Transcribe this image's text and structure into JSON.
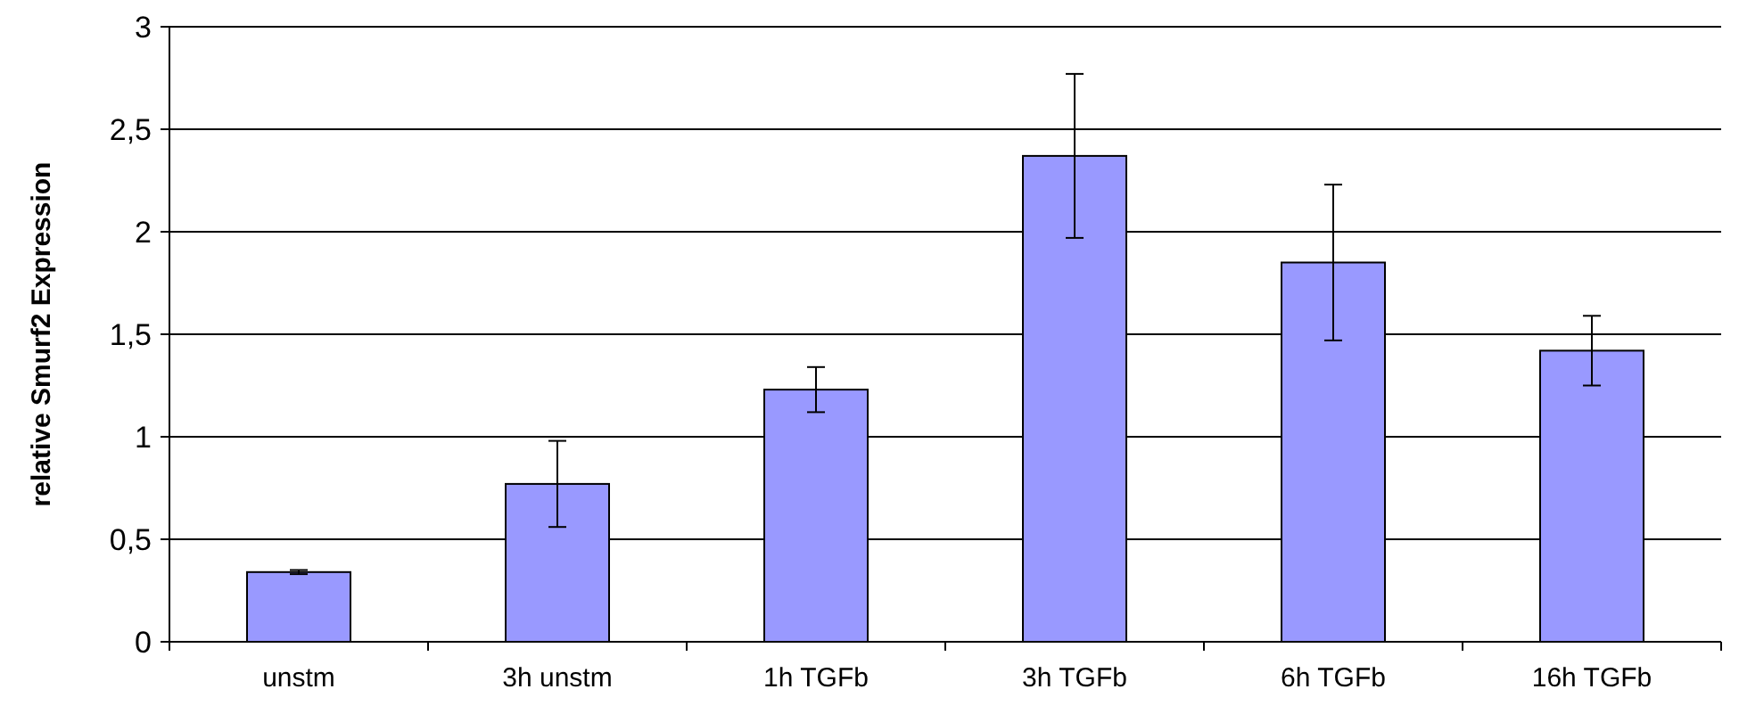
{
  "chart_data": {
    "type": "bar",
    "ylabel": "relative Smurf2 Expression",
    "categories": [
      "unstm",
      "3h unstm",
      "1h TGFb",
      "3h TGFb",
      "6h TGFb",
      "16h TGFb"
    ],
    "values": [
      0.34,
      0.77,
      1.23,
      2.37,
      1.85,
      1.42
    ],
    "errors": [
      0.01,
      0.21,
      0.11,
      0.4,
      0.38,
      0.17
    ],
    "color": "#9999ff",
    "ylim": [
      0,
      3
    ],
    "yticks": [
      0,
      {
        "value": 0.5,
        "label": "0,5"
      },
      1,
      {
        "value": 1.5,
        "label": "1,5"
      },
      2,
      {
        "value": 2.5,
        "label": "2,5"
      },
      3
    ],
    "grid": "y"
  }
}
